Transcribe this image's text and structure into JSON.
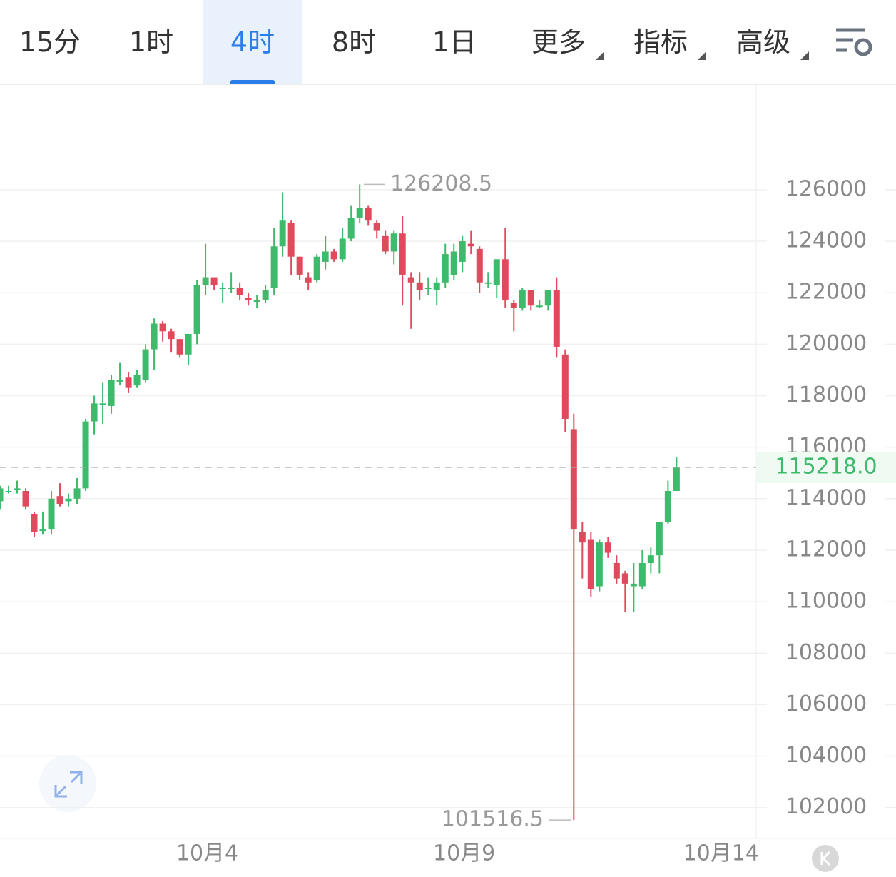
{
  "tabs": [
    "15分",
    "1时",
    "4时",
    "8时",
    "1日",
    "更多",
    "指标",
    "高级"
  ],
  "active_tab": 2,
  "chart_data": {
    "type": "candlestick",
    "up_color": "#3dba6b",
    "down_color": "#df4a5c",
    "series": {
      "open": [
        113900,
        114300,
        114400,
        114300,
        113400,
        112800,
        112800,
        114100,
        113900,
        114000,
        114400,
        117000,
        117700,
        117600,
        118600,
        118700,
        118400,
        118600,
        119800,
        120800,
        120500,
        120200,
        119600,
        120400,
        122300,
        122600,
        122200,
        122200,
        122200,
        121800,
        121700,
        121700,
        122200,
        123800,
        124700,
        123400,
        122600,
        122500,
        123200,
        123600,
        123300,
        124100,
        124900,
        125300,
        124700,
        124200,
        123600,
        124300,
        122600,
        122400,
        122200,
        122100,
        122400,
        122700,
        123200,
        123900,
        123700,
        122400,
        122300,
        123300,
        121600,
        121400,
        122100,
        121500,
        121500,
        122100,
        119600,
        116700,
        112700,
        112400,
        110600,
        112300,
        111500,
        111100,
        110600,
        110600,
        111500,
        111800,
        113100,
        114300
      ],
      "high": [
        114500,
        114500,
        114700,
        114400,
        113500,
        113500,
        114300,
        114600,
        114200,
        114800,
        117100,
        118000,
        118500,
        118800,
        119300,
        118900,
        119000,
        120000,
        121000,
        120900,
        120600,
        120200,
        120400,
        122500,
        123900,
        122600,
        122400,
        122800,
        122400,
        122000,
        121900,
        122300,
        124500,
        125900,
        124800,
        123400,
        122800,
        123500,
        124200,
        123700,
        124500,
        125400,
        126208.5,
        125400,
        124800,
        124400,
        124400,
        125000,
        122800,
        122800,
        122600,
        122600,
        123900,
        123900,
        124200,
        124400,
        123800,
        122800,
        123300,
        124500,
        121700,
        122200,
        122100,
        121700,
        122100,
        122600,
        119800,
        117300,
        113100,
        112700,
        112400,
        112500,
        111800,
        111200,
        111500,
        112000,
        112100,
        113100,
        114700,
        115600
      ],
      "low": [
        113600,
        114200,
        114200,
        113600,
        112500,
        112600,
        112600,
        113700,
        113700,
        113800,
        114300,
        116500,
        116900,
        117300,
        118400,
        118100,
        118300,
        118500,
        119000,
        120100,
        119700,
        119500,
        119200,
        120000,
        121900,
        122100,
        121600,
        122000,
        121700,
        121500,
        121400,
        121600,
        121900,
        123400,
        122700,
        122500,
        122100,
        122400,
        122900,
        123200,
        123200,
        124000,
        124700,
        124600,
        124100,
        123500,
        123100,
        121500,
        120600,
        121700,
        121900,
        121500,
        122200,
        122500,
        122800,
        123500,
        122000,
        122200,
        121800,
        121400,
        120500,
        121300,
        121300,
        121400,
        121300,
        119500,
        116600,
        101516.5,
        110900,
        110200,
        110400,
        111700,
        110700,
        109600,
        109600,
        110500,
        111100,
        111100,
        113000,
        114300
      ],
      "close": [
        114400,
        114300,
        114400,
        113700,
        112700,
        112800,
        114000,
        113800,
        114000,
        114400,
        117000,
        117700,
        117700,
        118600,
        118600,
        118300,
        118800,
        119800,
        120800,
        120500,
        120200,
        119600,
        120400,
        122300,
        122600,
        122300,
        122200,
        122200,
        121900,
        121700,
        121700,
        122100,
        123800,
        124800,
        123400,
        122700,
        122400,
        123400,
        123600,
        123300,
        124100,
        124900,
        125300,
        124800,
        124400,
        123600,
        124300,
        122700,
        122400,
        122100,
        122200,
        122400,
        123500,
        123600,
        124000,
        123800,
        122400,
        122400,
        123300,
        121700,
        121400,
        122100,
        121500,
        121500,
        122100,
        119900,
        117100,
        112800,
        112300,
        110500,
        112300,
        111900,
        110900,
        110700,
        110700,
        111500,
        111800,
        113100,
        114300,
        115218
      ]
    },
    "ylim": [
      100800,
      130100
    ],
    "yticks": [
      102000,
      104000,
      106000,
      108000,
      110000,
      112000,
      114000,
      116000,
      118000,
      120000,
      122000,
      124000,
      126000
    ],
    "xlim": [
      0,
      88.3
    ],
    "xticks": [
      {
        "value": 24.2,
        "label": "10月4"
      },
      {
        "value": 54.2,
        "label": "10月9"
      },
      {
        "value": 84.2,
        "label": "10月14"
      }
    ],
    "grid": true,
    "high_label": 126208.5,
    "low_label": 101516.5,
    "last_price": {
      "value": 115218,
      "label": "115218.0"
    }
  }
}
